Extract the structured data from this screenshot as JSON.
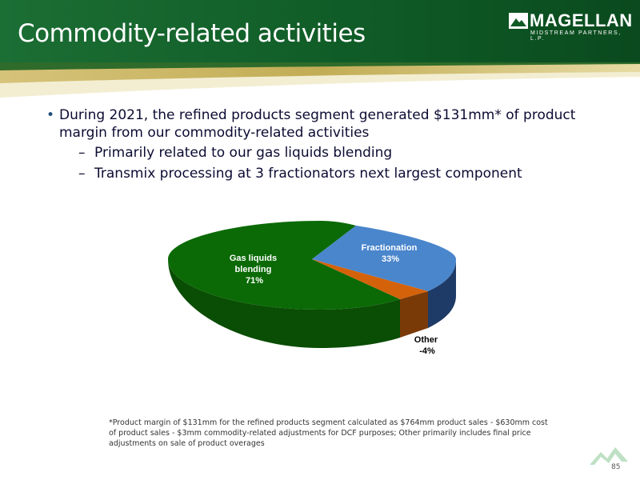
{
  "header": {
    "title": "Commodity-related activities",
    "logo_name": "MAGELLAN",
    "logo_tagline": "MIDSTREAM PARTNERS, L.P."
  },
  "bullets": [
    {
      "level": 1,
      "text": "During 2021, the refined products segment generated $131mm* of product margin from our commodity-related activities"
    },
    {
      "level": 2,
      "text": "Primarily related to our gas liquids blending"
    },
    {
      "level": 2,
      "text": "Transmix processing at 3 fractionators next largest component"
    }
  ],
  "chart_data": {
    "type": "pie",
    "style": "3d",
    "slices": [
      {
        "name": "Gas liquids blending",
        "label_lines": [
          "Gas liquids",
          "blending",
          "71%"
        ],
        "value": 71,
        "color": "#0b6a06"
      },
      {
        "name": "Fractionation",
        "label_lines": [
          "Fractionation",
          "33%"
        ],
        "value": 33,
        "color": "#4a86cc"
      },
      {
        "name": "Other",
        "label_lines": [
          "Other",
          "-4%"
        ],
        "value": -4,
        "color": "#d4620a"
      }
    ]
  },
  "footnote": "*Product margin of $131mm for the refined products segment calculated as $764mm product sales - $630mm cost of product sales - $3mm commodity-related adjustments for DCF purposes; Other primarily includes final price adjustments on sale of product overages",
  "page_number": "85"
}
